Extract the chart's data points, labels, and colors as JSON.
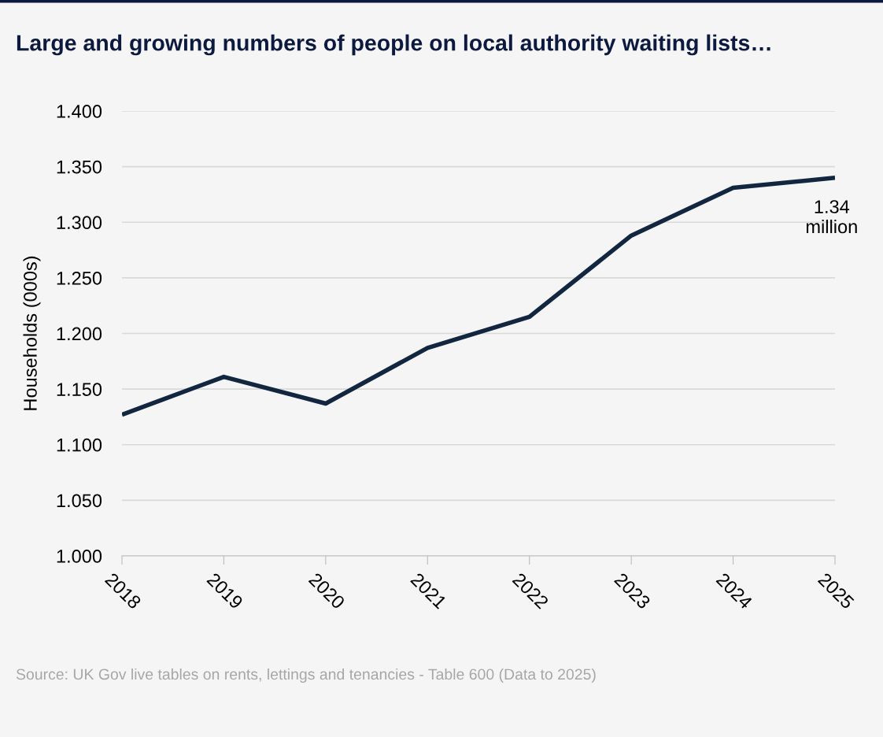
{
  "chart_data": {
    "type": "line",
    "title": "Large and growing numbers of people on local authority waiting lists…",
    "ylabel": "Households (000s)",
    "x": [
      2018,
      2019,
      2020,
      2021,
      2022,
      2023,
      2024,
      2025
    ],
    "series": [
      {
        "color": "#12263f",
        "values": [
          1.127,
          1.161,
          1.137,
          1.187,
          1.215,
          1.288,
          1.331,
          1.34
        ]
      }
    ],
    "xlim": [
      2018,
      2025
    ],
    "xticks": [
      2018,
      2019,
      2020,
      2021,
      2022,
      2023,
      2024,
      2025
    ],
    "ylim": [
      1.0,
      1.4
    ],
    "yticks": [
      {
        "value": 1.0,
        "label": "1.000"
      },
      {
        "value": 1.05,
        "label": "1.050"
      },
      {
        "value": 1.1,
        "label": "1.100"
      },
      {
        "value": 1.15,
        "label": "1.150"
      },
      {
        "value": 1.2,
        "label": "1.200"
      },
      {
        "value": 1.25,
        "label": "1.250"
      },
      {
        "value": 1.3,
        "label": "1.300"
      },
      {
        "value": 1.35,
        "label": "1.350"
      },
      {
        "value": 1.4,
        "label": "1.400"
      }
    ],
    "grid": "y",
    "marker": "none",
    "line_style": "solid",
    "annotations": [
      {
        "text": "1.34\nmillion",
        "x": 2025,
        "y": 1.34
      },
      "Source: UK Gov live tables on rents, lettings and tenancies - Table 600 (Data to 2025)"
    ]
  }
}
